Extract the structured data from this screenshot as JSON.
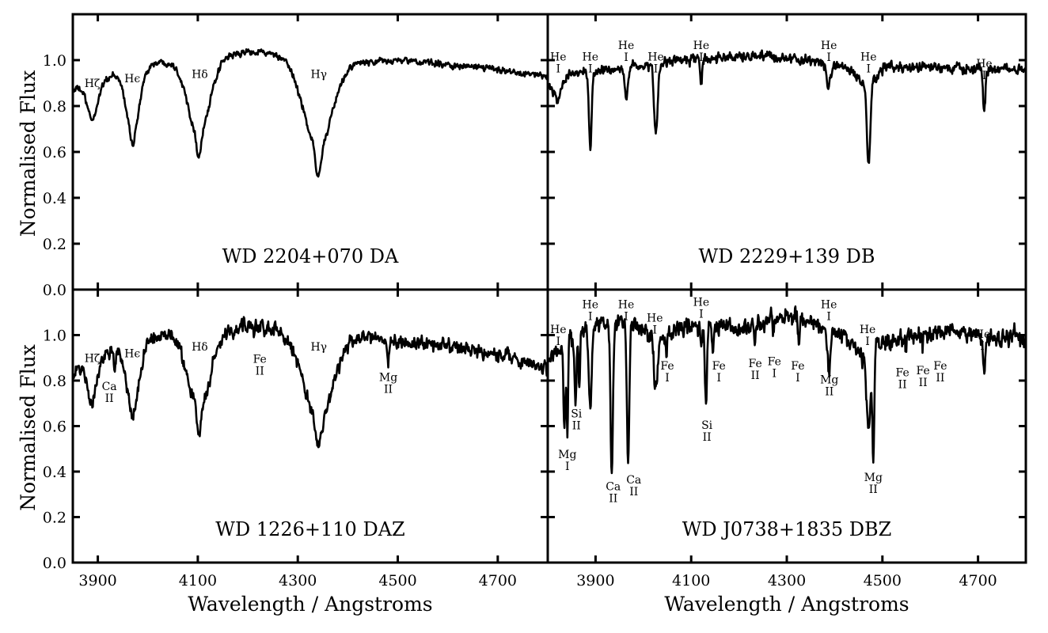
{
  "chart_data": {
    "type": "line",
    "xlabel": "Wavelength / Angstroms",
    "ylabel": "Normalised Flux",
    "ylim": [
      0,
      1.2
    ],
    "yticks": [
      0.0,
      0.2,
      0.4,
      0.6,
      0.8,
      1.0
    ],
    "ytick_labels": [
      "0.0",
      "0.2",
      "0.4",
      "0.6",
      "0.8",
      "1.0"
    ],
    "xticks": [
      3900,
      4100,
      4300,
      4500,
      4700
    ],
    "xtick_labels": [
      "3900",
      "4100",
      "4300",
      "4500",
      "4700"
    ],
    "line_color": "#000000",
    "panels": [
      {
        "id": "top-left",
        "title": "WD 2204+070 DA",
        "xlim": [
          3850,
          4800
        ],
        "noise": 0.008,
        "continuum": [
          [
            3850,
            0.87
          ],
          [
            3900,
            0.9
          ],
          [
            3950,
            0.95
          ],
          [
            4000,
            0.98
          ],
          [
            4050,
            1.0
          ],
          [
            4150,
            1.02
          ],
          [
            4220,
            1.04
          ],
          [
            4300,
            1.0
          ],
          [
            4450,
            0.99
          ],
          [
            4500,
            1.0
          ],
          [
            4600,
            0.98
          ],
          [
            4700,
            0.96
          ],
          [
            4800,
            0.93
          ]
        ],
        "lines": [
          [
            3889,
            0.17,
            10
          ],
          [
            3970,
            0.3,
            13
          ],
          [
            3970,
            0.06,
            3
          ],
          [
            4102,
            0.33,
            22
          ],
          [
            4102,
            0.15,
            4
          ],
          [
            4341,
            0.38,
            28
          ],
          [
            4341,
            0.2,
            5
          ]
        ],
        "annotations": [
          {
            "text": "Hζ",
            "lambda": 3889,
            "flux": 0.9
          },
          {
            "text": "Hϵ",
            "lambda": 3969,
            "flux": 0.92
          },
          {
            "text": "Hδ",
            "lambda": 4104,
            "flux": 0.94
          },
          {
            "text": "Hγ",
            "lambda": 4342,
            "flux": 0.94
          }
        ]
      },
      {
        "id": "top-right",
        "title": "WD 2229+139 DB",
        "xlim": [
          3800,
          4800
        ],
        "noise": 0.012,
        "continuum": [
          [
            3800,
            0.9
          ],
          [
            3850,
            0.94
          ],
          [
            3950,
            0.96
          ],
          [
            4100,
            1.0
          ],
          [
            4250,
            1.02
          ],
          [
            4350,
            1.0
          ],
          [
            4450,
            0.95
          ],
          [
            4500,
            0.97
          ],
          [
            4800,
            0.96
          ]
        ],
        "lines": [
          [
            3820,
            0.1,
            8
          ],
          [
            3889,
            0.37,
            2.5
          ],
          [
            3964,
            0.13,
            3
          ],
          [
            4026,
            0.3,
            4
          ],
          [
            4121,
            0.1,
            2
          ],
          [
            4388,
            0.1,
            4
          ],
          [
            4471,
            0.08,
            15
          ],
          [
            4471,
            0.38,
            3.5
          ],
          [
            4713,
            0.18,
            2.5
          ]
        ],
        "annotations": [
          {
            "text": "He I",
            "lambda": 3822,
            "flux": 0.99
          },
          {
            "text": "He I",
            "lambda": 3889,
            "flux": 0.99
          },
          {
            "text": "He I",
            "lambda": 3964,
            "flux": 1.04
          },
          {
            "text": "He I",
            "lambda": 4026,
            "flux": 0.99
          },
          {
            "text": "He I",
            "lambda": 4121,
            "flux": 1.04
          },
          {
            "text": "He I",
            "lambda": 4388,
            "flux": 1.04
          },
          {
            "text": "He I",
            "lambda": 4471,
            "flux": 0.99
          },
          {
            "text": "He I",
            "lambda": 4713,
            "flux": 0.96
          }
        ]
      },
      {
        "id": "bottom-left",
        "title": "WD 1226+110 DAZ",
        "xlim": [
          3850,
          4800
        ],
        "noise": 0.018,
        "continuum": [
          [
            3850,
            0.84
          ],
          [
            3900,
            0.9
          ],
          [
            3940,
            0.95
          ],
          [
            4000,
            0.98
          ],
          [
            4050,
            1.0
          ],
          [
            4150,
            1.02
          ],
          [
            4230,
            1.04
          ],
          [
            4300,
            1.0
          ],
          [
            4450,
            0.98
          ],
          [
            4600,
            0.95
          ],
          [
            4700,
            0.92
          ],
          [
            4800,
            0.85
          ]
        ],
        "lines": [
          [
            3889,
            0.2,
            10
          ],
          [
            3934,
            0.1,
            2
          ],
          [
            3970,
            0.3,
            13
          ],
          [
            3970,
            0.06,
            3
          ],
          [
            4102,
            0.33,
            22
          ],
          [
            4102,
            0.15,
            4
          ],
          [
            4233,
            0.06,
            1.5
          ],
          [
            4341,
            0.38,
            28
          ],
          [
            4341,
            0.2,
            5
          ],
          [
            4481,
            0.12,
            1.5
          ]
        ],
        "annotations": [
          {
            "text": "Hζ",
            "lambda": 3889,
            "flux": 0.9
          },
          {
            "text": "Ca II",
            "lambda": 3923,
            "flux": 0.75
          },
          {
            "text": "Hϵ",
            "lambda": 3969,
            "flux": 0.92
          },
          {
            "text": "Hδ",
            "lambda": 4104,
            "flux": 0.95
          },
          {
            "text": "Fe II",
            "lambda": 4224,
            "flux": 0.87
          },
          {
            "text": "Hγ",
            "lambda": 4342,
            "flux": 0.95
          },
          {
            "text": "Mg II",
            "lambda": 4481,
            "flux": 0.79
          }
        ]
      },
      {
        "id": "bottom-right",
        "title": "WD J0738+1835 DBZ",
        "xlim": [
          3800,
          4800
        ],
        "noise": 0.022,
        "continuum": [
          [
            3800,
            0.87
          ],
          [
            3830,
            0.95
          ],
          [
            3870,
            1.02
          ],
          [
            3900,
            1.05
          ],
          [
            3950,
            1.06
          ],
          [
            4000,
            1.02
          ],
          [
            4060,
            1.0
          ],
          [
            4100,
            1.04
          ],
          [
            4200,
            1.03
          ],
          [
            4300,
            1.08
          ],
          [
            4350,
            1.06
          ],
          [
            4400,
            1.02
          ],
          [
            4440,
            0.96
          ],
          [
            4460,
            0.92
          ],
          [
            4500,
            0.96
          ],
          [
            4550,
            1.0
          ],
          [
            4650,
            1.02
          ],
          [
            4700,
            1.0
          ],
          [
            4800,
            0.98
          ]
        ],
        "lines": [
          [
            3835,
            0.35,
            2
          ],
          [
            3841,
            0.4,
            1.5
          ],
          [
            3858,
            0.33,
            2
          ],
          [
            3866,
            0.22,
            1.5
          ],
          [
            3889,
            0.36,
            3
          ],
          [
            3934,
            0.64,
            2.5
          ],
          [
            3968,
            0.58,
            2.5
          ],
          [
            4026,
            0.24,
            4
          ],
          [
            4048,
            0.1,
            1.5
          ],
          [
            4121,
            0.1,
            2
          ],
          [
            4131,
            0.32,
            2
          ],
          [
            4146,
            0.1,
            1.5
          ],
          [
            4233,
            0.08,
            1.5
          ],
          [
            4272,
            0.08,
            1.5
          ],
          [
            4325,
            0.1,
            1.5
          ],
          [
            4388,
            0.18,
            3
          ],
          [
            4471,
            0.35,
            5
          ],
          [
            4481,
            0.5,
            2
          ],
          [
            4549,
            0.09,
            1.5
          ],
          [
            4584,
            0.07,
            1.5
          ],
          [
            4629,
            0.06,
            1.5
          ],
          [
            4713,
            0.16,
            2.5
          ]
        ],
        "annotations": [
          {
            "text": "He I",
            "lambda": 3822,
            "flux": 1.0
          },
          {
            "text": "Si II",
            "lambda": 3860,
            "flux": 0.63
          },
          {
            "text": "Mg I",
            "lambda": 3841,
            "flux": 0.45
          },
          {
            "text": "He I",
            "lambda": 3889,
            "flux": 1.11
          },
          {
            "text": "Ca II",
            "lambda": 3937,
            "flux": 0.31
          },
          {
            "text": "He I",
            "lambda": 3964,
            "flux": 1.11
          },
          {
            "text": "Ca II",
            "lambda": 3980,
            "flux": 0.34
          },
          {
            "text": "He I",
            "lambda": 4024,
            "flux": 1.05
          },
          {
            "text": "Fe I",
            "lambda": 4050,
            "flux": 0.84
          },
          {
            "text": "He I",
            "lambda": 4121,
            "flux": 1.12
          },
          {
            "text": "Si II",
            "lambda": 4133,
            "flux": 0.58
          },
          {
            "text": "Fe I",
            "lambda": 4158,
            "flux": 0.84
          },
          {
            "text": "Fe II",
            "lambda": 4234,
            "flux": 0.85
          },
          {
            "text": "Fe I",
            "lambda": 4274,
            "flux": 0.86
          },
          {
            "text": "Fe I",
            "lambda": 4323,
            "flux": 0.84
          },
          {
            "text": "He I",
            "lambda": 4388,
            "flux": 1.11
          },
          {
            "text": "Mg II",
            "lambda": 4389,
            "flux": 0.78
          },
          {
            "text": "He I",
            "lambda": 4469,
            "flux": 1.0
          },
          {
            "text": "Mg II",
            "lambda": 4481,
            "flux": 0.35
          },
          {
            "text": "Fe II",
            "lambda": 4542,
            "flux": 0.81
          },
          {
            "text": "Fe II",
            "lambda": 4585,
            "flux": 0.82
          },
          {
            "text": "Fe II",
            "lambda": 4621,
            "flux": 0.84
          },
          {
            "text": "He I",
            "lambda": 4709,
            "flux": 0.98
          }
        ]
      }
    ]
  }
}
